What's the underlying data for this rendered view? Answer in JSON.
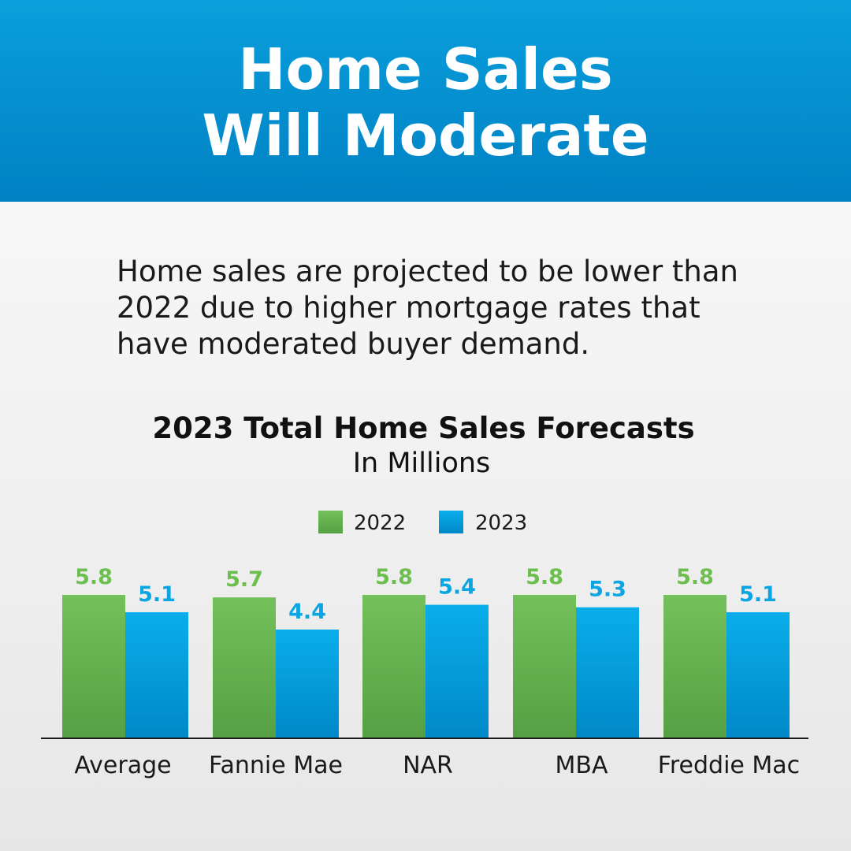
{
  "header": {
    "title_line1": "Home Sales",
    "title_line2": "Will Moderate"
  },
  "description": {
    "line1": "Home sales are projected to be lower than",
    "line2": "2022 due to higher mortgage rates that",
    "line3": "have moderated buyer demand."
  },
  "colors": {
    "header_top": "#0a9fdc",
    "header_bottom": "#0081c4",
    "series_2022_top": "#74c05a",
    "series_2022_bottom": "#55a043",
    "series_2023_top": "#0aaeea",
    "series_2023_bottom": "#0088c8",
    "label_2022": "#6cbf4f",
    "label_2023": "#0aa6e3"
  },
  "chart_data": {
    "type": "bar",
    "title": "2023 Total Home Sales Forecasts",
    "subtitle": "In Millions",
    "categories": [
      "Average",
      "Fannie Mae",
      "NAR",
      "MBA",
      "Freddie Mac"
    ],
    "series": [
      {
        "name": "2022",
        "values": [
          5.8,
          5.7,
          5.8,
          5.8,
          5.8
        ],
        "labels": [
          "5.8",
          "5.7",
          "5.8",
          "5.8",
          "5.8"
        ]
      },
      {
        "name": "2023",
        "values": [
          5.1,
          4.4,
          5.4,
          5.3,
          5.1
        ],
        "labels": [
          "5.1",
          "4.4",
          "5.4",
          "5.3",
          "5.1"
        ]
      }
    ],
    "legend": "top-center",
    "grid": false,
    "data_labels": true,
    "ylim": [
      0,
      5.8
    ]
  }
}
